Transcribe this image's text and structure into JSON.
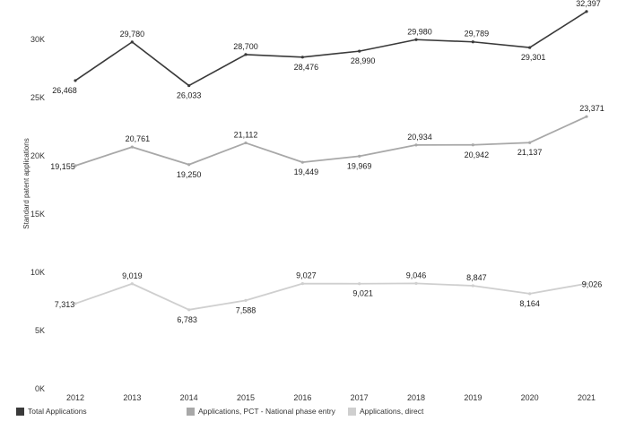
{
  "chart_data": {
    "type": "line",
    "title": "",
    "xlabel": "",
    "ylabel": "Standard patent applications",
    "categories": [
      "2012",
      "2013",
      "2014",
      "2015",
      "2016",
      "2017",
      "2018",
      "2019",
      "2020",
      "2021"
    ],
    "ylim": [
      0,
      33000
    ],
    "yticks": [
      "0K",
      "5K",
      "10K",
      "15K",
      "20K",
      "25K",
      "30K"
    ],
    "ytick_values": [
      0,
      5000,
      10000,
      15000,
      20000,
      25000,
      30000
    ],
    "legend_position": "bottom-left",
    "grid": false,
    "series": [
      {
        "name": "Total Applications",
        "color": "#3a3a3a",
        "values": [
          26468,
          29780,
          26033,
          28700,
          28476,
          28990,
          29980,
          29789,
          29301,
          32397
        ],
        "labels": [
          "26,468",
          "29,780",
          "26,033",
          "28,700",
          "28,476",
          "28,990",
          "29,980",
          "29,789",
          "29,301",
          "32,397"
        ]
      },
      {
        "name": "Applications, PCT - National phase entry",
        "color": "#a8a8a8",
        "values": [
          19155,
          20761,
          19250,
          21112,
          19449,
          19969,
          20934,
          20942,
          21137,
          23371
        ],
        "labels": [
          "19,155",
          "20,761",
          "19,250",
          "21,112",
          "19,449",
          "19,969",
          "20,934",
          "20,942",
          "21,137",
          "23,371"
        ]
      },
      {
        "name": "Applications, direct",
        "color": "#cfcfcf",
        "values": [
          7313,
          9019,
          6783,
          7588,
          9027,
          9021,
          9046,
          8847,
          8164,
          9026
        ],
        "labels": [
          "7,313",
          "9,019",
          "6,783",
          "7,588",
          "9,027",
          "9,021",
          "9,046",
          "8,847",
          "8,164",
          "9,026"
        ]
      }
    ]
  }
}
